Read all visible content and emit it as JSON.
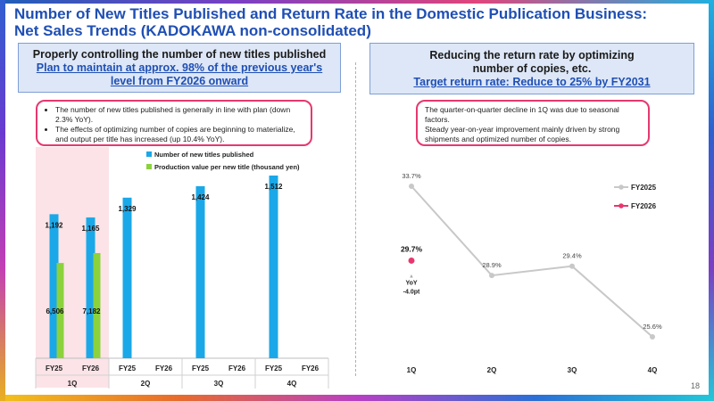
{
  "title": {
    "line1": "Number of New Titles Published and Return Rate in the Domestic Publication Business:",
    "line2": "Net Sales Trends (KADOKAWA non-consolidated)"
  },
  "left_header": {
    "line1": "Properly controlling the number of new titles published",
    "line2": "Plan to maintain at approx. 98% of the previous year's",
    "line3": "level from FY2026 onward"
  },
  "right_header": {
    "line1": "Reducing the return rate by optimizing",
    "line2": "number of copies, etc.",
    "line3": "Target return rate: Reduce to 25% by FY2031"
  },
  "left_callout": {
    "bullets": [
      "The number of new titles published is generally in line with plan (down 2.3% YoY).",
      "The effects of optimizing number of copies are beginning to materialize, and output per title has increased (up 10.4% YoY)."
    ]
  },
  "right_callout": {
    "line1": "The quarter-on-quarter decline in 1Q was due to seasonal factors.",
    "line2": "Steady year-on-year improvement mainly driven by strong shipments and optimized number of copies."
  },
  "chart_data": [
    {
      "type": "bar",
      "categories": [
        "FY25",
        "FY26",
        "FY25",
        "FY26",
        "FY25",
        "FY26",
        "FY25",
        "FY26"
      ],
      "groups": [
        "1Q",
        "2Q",
        "3Q",
        "4Q"
      ],
      "series": [
        {
          "name": "Number of new titles published",
          "color": "#1aa8e8",
          "values": [
            1192,
            1165,
            1329,
            null,
            1424,
            null,
            1512,
            null
          ]
        },
        {
          "name": "Production value per new title (thousand yen)",
          "color": "#8cd23c",
          "values": [
            6506,
            7182,
            null,
            null,
            null,
            null,
            null,
            null
          ]
        }
      ],
      "value_labels": [
        "1,192",
        "1,165",
        "1,329",
        null,
        "1,424",
        null,
        "1,512",
        null
      ],
      "value_labels_2": [
        "6,506",
        "7,182",
        null,
        null,
        null,
        null,
        null,
        null
      ],
      "legend_position": "top-right",
      "highlight_group": "1Q",
      "highlight_color": "#fbe3e7"
    },
    {
      "type": "line",
      "categories": [
        "1Q",
        "2Q",
        "3Q",
        "4Q"
      ],
      "series": [
        {
          "name": "FY2025",
          "color": "#c8c8c8",
          "values": [
            33.7,
            28.9,
            29.4,
            25.6
          ],
          "labels": [
            "33.7%",
            "28.9%",
            "29.4%",
            "25.6%"
          ]
        },
        {
          "name": "FY2026",
          "color": "#e6386f",
          "values": [
            29.7,
            null,
            null,
            null
          ],
          "labels": [
            "29.7%",
            null,
            null,
            null
          ]
        }
      ],
      "annotation": {
        "line1": "YoY",
        "line2": "-4.0pt"
      },
      "legend_position": "top-right",
      "ylim": [
        24,
        35
      ]
    }
  ],
  "page_number": "18"
}
